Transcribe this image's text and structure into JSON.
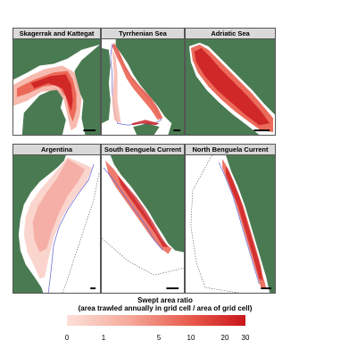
{
  "panels": [
    {
      "title": "Skagerrak and Kattegat"
    },
    {
      "title": "Tyrrhenian Sea"
    },
    {
      "title": "Adriatic Sea"
    },
    {
      "title": "Argentina"
    },
    {
      "title": "South Benguela Current"
    },
    {
      "title": "North Benguela Current"
    }
  ],
  "legend": {
    "title_line1": "Swept area ratio",
    "title_line2": "(area trawled annually in grid cell / area of grid cell)",
    "ticks": [
      {
        "label": "0",
        "value": 0
      },
      {
        "label": "1",
        "value": 1
      },
      {
        "label": "5",
        "value": 5
      },
      {
        "label": "10",
        "value": 10
      },
      {
        "label": "20",
        "value": 20
      },
      {
        "label": "30",
        "value": 30
      }
    ],
    "colors": [
      "#fde0d9",
      "#f5a99a",
      "#e8584a",
      "#c8161a"
    ]
  },
  "colors": {
    "land": "#4a7a52",
    "sea": "#ffffff",
    "trawl_low": "#f6b3a6",
    "trawl_mid": "#ea5a48",
    "trawl_high": "#c9161b",
    "shelf_line": "#6f6fd6",
    "border": "#555555",
    "title_bg": "#d9d9d9"
  }
}
